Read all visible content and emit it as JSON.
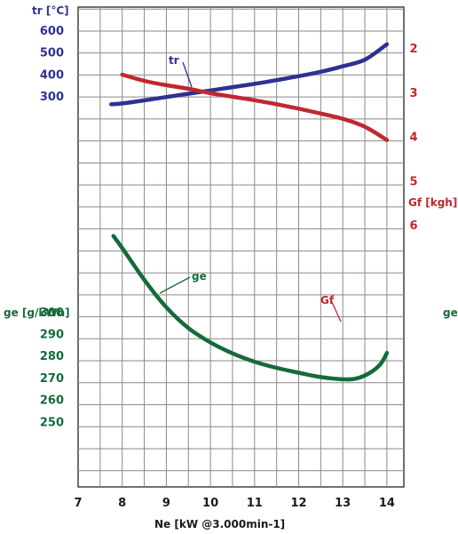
{
  "chart_data": {
    "type": "line",
    "xlabel": "Ne [kW @3.000min-1]",
    "x_ticks": [
      "7",
      "8",
      "9",
      "10",
      "11",
      "12",
      "13",
      "14"
    ],
    "xlim": [
      7,
      14.5
    ],
    "axes": {
      "tr": {
        "label": "tr [°C]",
        "ticks": [
          "300",
          "400",
          "500",
          "600"
        ],
        "color": "#2e3192"
      },
      "ge": {
        "label": "ge [g/kWh]",
        "ticks": [
          "250",
          "260",
          "270",
          "280",
          "290",
          "300"
        ],
        "color": "#146b3a"
      },
      "gf": {
        "label": "Gf [kgh]",
        "ticks": [
          "2",
          "3",
          "4",
          "5",
          "6"
        ],
        "color": "#c1272d"
      },
      "ge_right": {
        "label": "ge"
      }
    },
    "series": [
      {
        "name": "tr",
        "color": "#2e3192",
        "x": [
          7.75,
          8.0,
          8.5,
          9.0,
          9.5,
          10.0,
          10.5,
          11.0,
          11.5,
          12.0,
          12.5,
          13.0,
          13.5,
          14.0
        ],
        "y": [
          262,
          266,
          280,
          295,
          310,
          325,
          340,
          355,
          372,
          390,
          410,
          435,
          465,
          535
        ]
      },
      {
        "name": "ge",
        "color": "#146b3a",
        "x": [
          7.8,
          8.0,
          8.5,
          9.0,
          9.5,
          10.0,
          10.5,
          11.0,
          11.5,
          12.0,
          12.5,
          13.0,
          13.3,
          13.6,
          13.85,
          14.0
        ],
        "y": [
          334.5,
          329,
          314.5,
          302,
          292.5,
          286,
          281,
          277.2,
          274.4,
          272.2,
          270.2,
          269.2,
          269.5,
          272,
          276,
          281.2
        ]
      },
      {
        "name": "Gf",
        "color": "#c1272d",
        "x": [
          8.0,
          8.5,
          9.0,
          9.5,
          10.0,
          10.5,
          11.0,
          11.5,
          12.0,
          12.5,
          13.0,
          13.5,
          14.0
        ],
        "y": [
          2.6,
          2.74,
          2.84,
          2.92,
          3.02,
          3.1,
          3.18,
          3.27,
          3.37,
          3.48,
          3.6,
          3.78,
          4.08
        ]
      }
    ],
    "annotations": [
      "tr",
      "ge",
      "Gf"
    ],
    "grid": true
  }
}
